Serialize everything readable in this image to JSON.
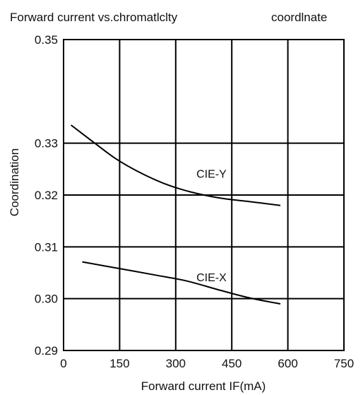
{
  "title": "Forward current vs.chromatlclty",
  "title_suffix": "coordlnate",
  "chart_data": {
    "type": "line",
    "title": "Forward current vs.chromatlclty coordlnate",
    "xlabel": "Forward current IF(mA)",
    "ylabel": "Coordination",
    "xlim": [
      0,
      750
    ],
    "ylim": [
      0.29,
      0.35
    ],
    "x_ticks": [
      "0",
      "150",
      "300",
      "450",
      "600",
      "750"
    ],
    "y_ticks": [
      "0.29",
      "0.30",
      "0.31",
      "0.32",
      "0.33",
      "0.35"
    ],
    "grid": true,
    "series": [
      {
        "name": "CIE-Y",
        "x": [
          20,
          80,
          140,
          200,
          270,
          340,
          420,
          500,
          580
        ],
        "y": [
          0.3335,
          0.3302,
          0.327,
          0.3245,
          0.3222,
          0.3206,
          0.3194,
          0.3187,
          0.318
        ],
        "color": "#000000"
      },
      {
        "name": "CIE-X",
        "x": [
          50,
          150,
          250,
          330,
          420,
          500,
          580
        ],
        "y": [
          0.3071,
          0.3058,
          0.3045,
          0.3034,
          0.3016,
          0.3001,
          0.299
        ],
        "color": "#000000"
      }
    ],
    "line_labels": [
      {
        "series": "CIE-Y",
        "text": "CIE-Y",
        "x": 480,
        "y": 0.3228
      },
      {
        "series": "CIE-X",
        "text": "CIE-X",
        "x": 480,
        "y": 0.3028
      }
    ]
  }
}
